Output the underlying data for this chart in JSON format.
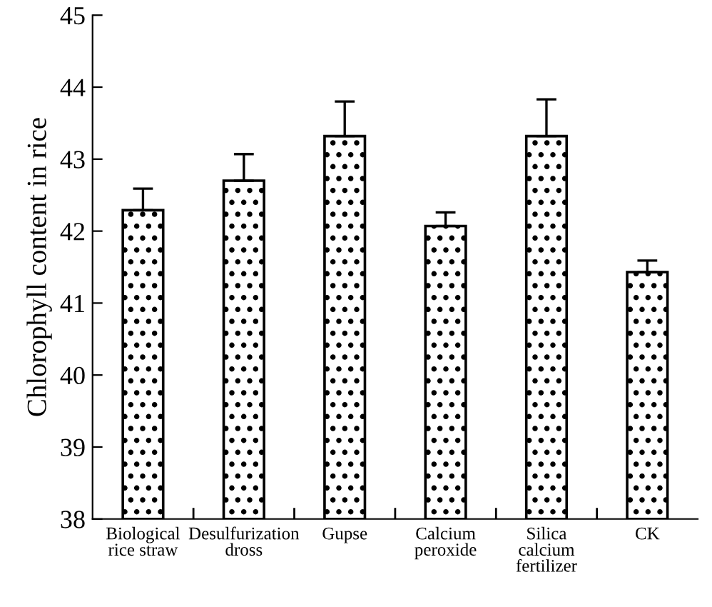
{
  "chart_data": {
    "type": "bar",
    "ylabel": "Chlorophyll content in rice",
    "categories": [
      "Biological\nrice straw",
      "Desulfurization\ndross",
      "Gupse",
      "Calcium\nperoxide",
      "Silica\ncalcium\nfertilizer",
      "CK"
    ],
    "values": [
      42.29,
      42.7,
      43.32,
      42.07,
      43.32,
      41.43
    ],
    "errors": [
      [
        42.29,
        42.59
      ],
      [
        42.7,
        43.07
      ],
      [
        43.32,
        43.8
      ],
      [
        42.07,
        42.26
      ],
      [
        43.32,
        43.83
      ],
      [
        41.43,
        41.59
      ]
    ],
    "ylim": [
      38,
      45
    ],
    "yticks": [
      38,
      39,
      40,
      41,
      42,
      43,
      44,
      45
    ],
    "grid": false
  }
}
